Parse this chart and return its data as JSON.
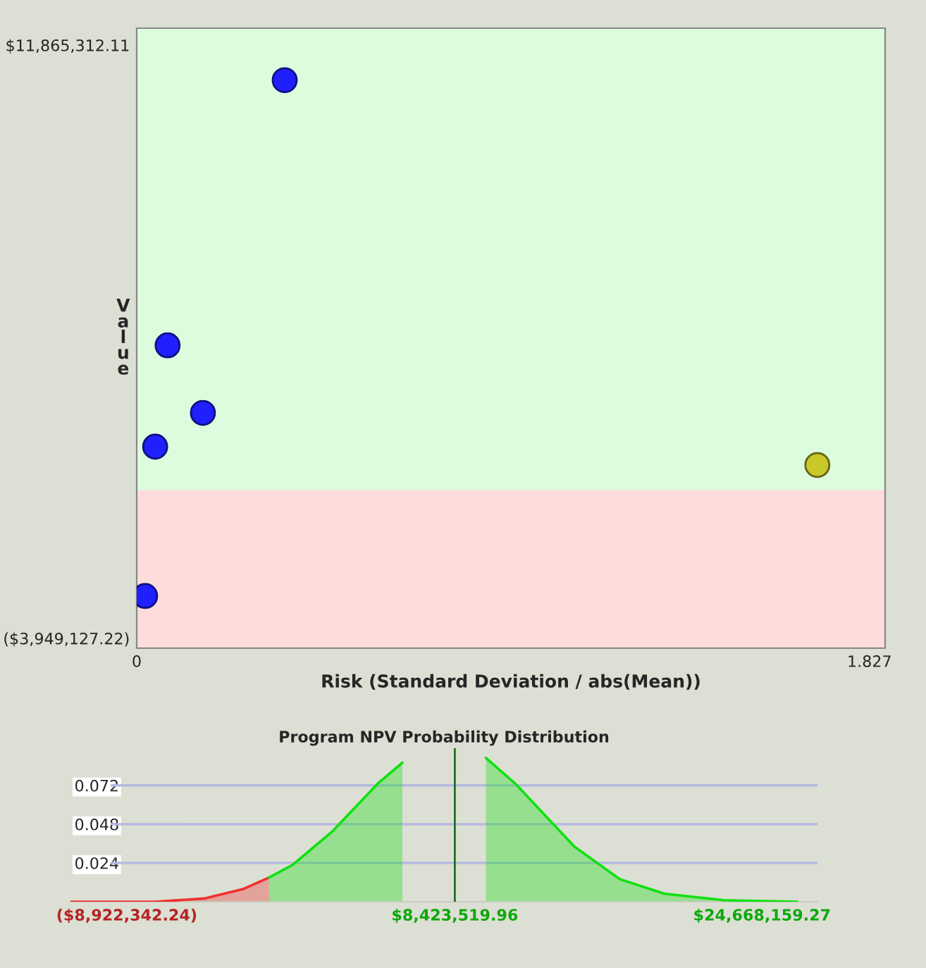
{
  "chart_data": [
    {
      "type": "scatter",
      "xlabel": "Risk (Standard Deviation / abs(Mean))",
      "ylabel": "Value",
      "x": [
        0.369,
        0.077,
        0.165,
        0.046,
        1.697,
        0.021
      ],
      "values": [
        10930000,
        3860000,
        2060000,
        1160000,
        670000,
        -2820000
      ],
      "colors": [
        "#2020ff",
        "#2020ff",
        "#2020ff",
        "#2020ff",
        "#c8c828",
        "#2020ff"
      ],
      "marker": "circle",
      "xlim": [
        0,
        1.866
      ],
      "xticks": [
        0,
        1.827
      ],
      "ylim": [
        -4212000,
        12316000
      ],
      "yticks": [
        {
          "value": -3949127.22,
          "label": "($3,949,127.22)"
        },
        {
          "value": 11865312.11,
          "label": "$11,865,312.11"
        }
      ],
      "bands": [
        {
          "axis": "y",
          "from": 0,
          "to": 12316000,
          "color": "#ddfcdd"
        },
        {
          "axis": "y",
          "from": -4212000,
          "to": 0,
          "color": "#fedcdc"
        }
      ],
      "grid": false
    },
    {
      "type": "area",
      "title": "Program NPV Probability Distribution",
      "series": [
        {
          "color": "#f03030",
          "x": [
            -11860000,
            -7430000,
            -4830000,
            -2740000,
            -1400000
          ],
          "values": [
            0,
            0,
            0.002,
            0.008,
            0.015
          ]
        },
        {
          "color": "#10e010",
          "x": [
            -1400000,
            -130000,
            1990000,
            4340000,
            5650000,
            6940000,
            8500000,
            10070000,
            11630000,
            14760000,
            17150000,
            19500000,
            22630000,
            26530000
          ],
          "values": [
            0.015,
            0.023,
            0.044,
            0.073,
            0.086,
            null,
            null,
            0.089,
            0.073,
            0.034,
            0.014,
            0.005,
            0.001,
            0
          ]
        }
      ],
      "xlim": [
        -11900000,
        27600000
      ],
      "xticks": [
        {
          "value": -8922342.24,
          "label": "($8,922,342.24)"
        },
        {
          "value": 8423519.96,
          "label": "$8,423,519.96"
        },
        {
          "value": 24668159.27,
          "label": "$24,668,159.27"
        }
      ],
      "ylim": [
        0,
        0.095
      ],
      "yticks": [
        0.024,
        0.048,
        0.072
      ],
      "ref_lines": [
        {
          "axis": "x",
          "value": 8423519.96,
          "color": "#207020"
        }
      ],
      "grid": "y"
    }
  ]
}
